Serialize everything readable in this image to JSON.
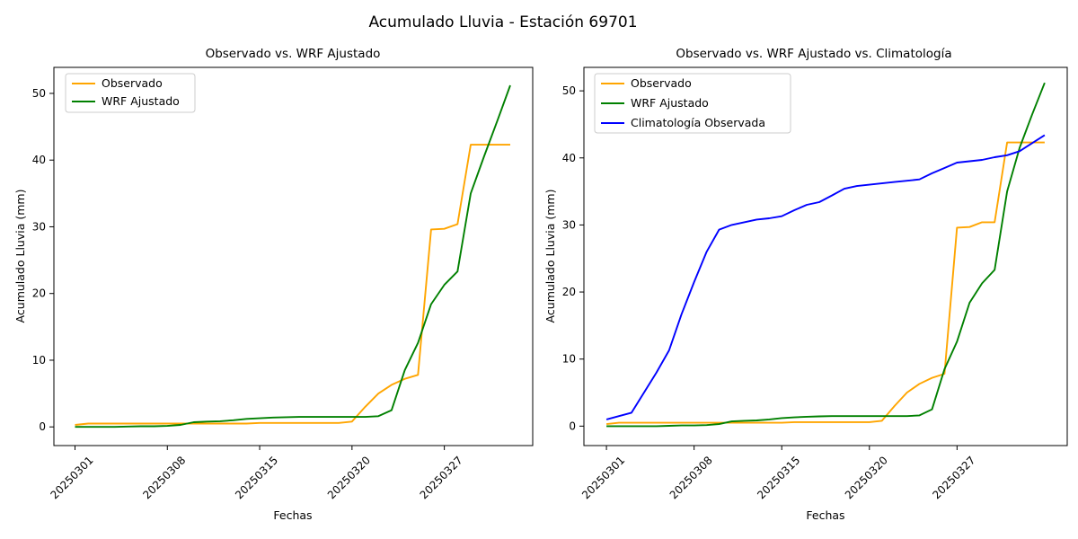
{
  "figure": {
    "title": "Acumulado Lluvia - Estación 69701"
  },
  "colors": {
    "observado": "#FFA500",
    "wrf_ajustado": "#008000",
    "climatologia": "#0000FF",
    "axis": "#000000",
    "legend_border": "#cccccc"
  },
  "chart_data": [
    {
      "type": "line",
      "title": "Observado vs. WRF Ajustado",
      "xlabel": "Fechas",
      "ylabel": "Acumulado Lluvia (mm)",
      "legend_position": "upper left",
      "grid": false,
      "x_tick_indices": [
        0,
        7,
        14,
        21,
        28
      ],
      "x_tick_labels": [
        "20250301",
        "20250308",
        "20250315",
        "20250320",
        "20250327"
      ],
      "y_ticks": [
        0,
        10,
        20,
        30,
        40,
        50
      ],
      "xlim": [
        -1.6,
        34.7
      ],
      "ylim": [
        -2.8,
        53.9
      ],
      "n_points": 34,
      "series": [
        {
          "name": "Observado",
          "color": "#FFA500",
          "values": [
            0.3,
            0.5,
            0.5,
            0.5,
            0.5,
            0.5,
            0.5,
            0.5,
            0.5,
            0.5,
            0.5,
            0.5,
            0.5,
            0.5,
            0.6,
            0.6,
            0.6,
            0.6,
            0.6,
            0.6,
            0.6,
            0.8,
            3.0,
            5.0,
            6.3,
            7.2,
            7.8,
            29.6,
            29.7,
            30.4,
            42.3,
            42.3,
            42.3,
            42.3
          ]
        },
        {
          "name": "WRF Ajustado",
          "color": "#008000",
          "values": [
            0.0,
            0.0,
            0.0,
            0.0,
            0.05,
            0.1,
            0.1,
            0.15,
            0.3,
            0.7,
            0.8,
            0.85,
            1.0,
            1.2,
            1.3,
            1.4,
            1.45,
            1.5,
            1.5,
            1.5,
            1.5,
            1.5,
            1.5,
            1.6,
            2.5,
            8.5,
            12.6,
            18.4,
            21.3,
            23.3,
            35.0,
            40.5,
            45.8,
            51.2
          ]
        }
      ]
    },
    {
      "type": "line",
      "title": "Observado vs. WRF Ajustado vs. Climatología",
      "xlabel": "Fechas",
      "ylabel": "Acumulado Lluvia (mm)",
      "legend_position": "upper left",
      "grid": false,
      "x_tick_indices": [
        0,
        7,
        14,
        21,
        28
      ],
      "x_tick_labels": [
        "20250301",
        "20250308",
        "20250315",
        "20250320",
        "20250327"
      ],
      "y_ticks": [
        0,
        10,
        20,
        30,
        40,
        50
      ],
      "xlim": [
        -1.8,
        36.8
      ],
      "ylim": [
        -2.9,
        53.5
      ],
      "n_points": 36,
      "series": [
        {
          "name": "Observado",
          "color": "#FFA500",
          "values": [
            0.3,
            0.5,
            0.5,
            0.5,
            0.5,
            0.5,
            0.5,
            0.5,
            0.5,
            0.5,
            0.5,
            0.5,
            0.5,
            0.5,
            0.5,
            0.6,
            0.6,
            0.6,
            0.6,
            0.6,
            0.6,
            0.6,
            0.8,
            3.0,
            5.0,
            6.3,
            7.2,
            7.8,
            29.6,
            29.7,
            30.4,
            30.4,
            42.3,
            42.3,
            42.3,
            42.3
          ]
        },
        {
          "name": "WRF Ajustado",
          "color": "#008000",
          "values": [
            0.0,
            0.0,
            0.0,
            0.0,
            0.0,
            0.05,
            0.1,
            0.1,
            0.15,
            0.3,
            0.7,
            0.8,
            0.85,
            1.0,
            1.2,
            1.3,
            1.4,
            1.45,
            1.5,
            1.5,
            1.5,
            1.5,
            1.5,
            1.5,
            1.5,
            1.6,
            2.5,
            8.5,
            12.6,
            18.4,
            21.3,
            23.3,
            35.0,
            41.5,
            46.5,
            51.2
          ]
        },
        {
          "name": "Climatología Observada",
          "color": "#0000FF",
          "values": [
            1.0,
            1.5,
            2.0,
            5.0,
            8.0,
            11.3,
            16.7,
            21.5,
            26.0,
            29.3,
            30.0,
            30.4,
            30.8,
            31.0,
            31.3,
            32.2,
            33.0,
            33.4,
            34.4,
            35.4,
            35.8,
            36.0,
            36.2,
            36.4,
            36.6,
            36.8,
            37.7,
            38.5,
            39.3,
            39.5,
            39.7,
            40.1,
            40.4,
            41.0,
            42.2,
            43.4
          ]
        }
      ]
    }
  ]
}
